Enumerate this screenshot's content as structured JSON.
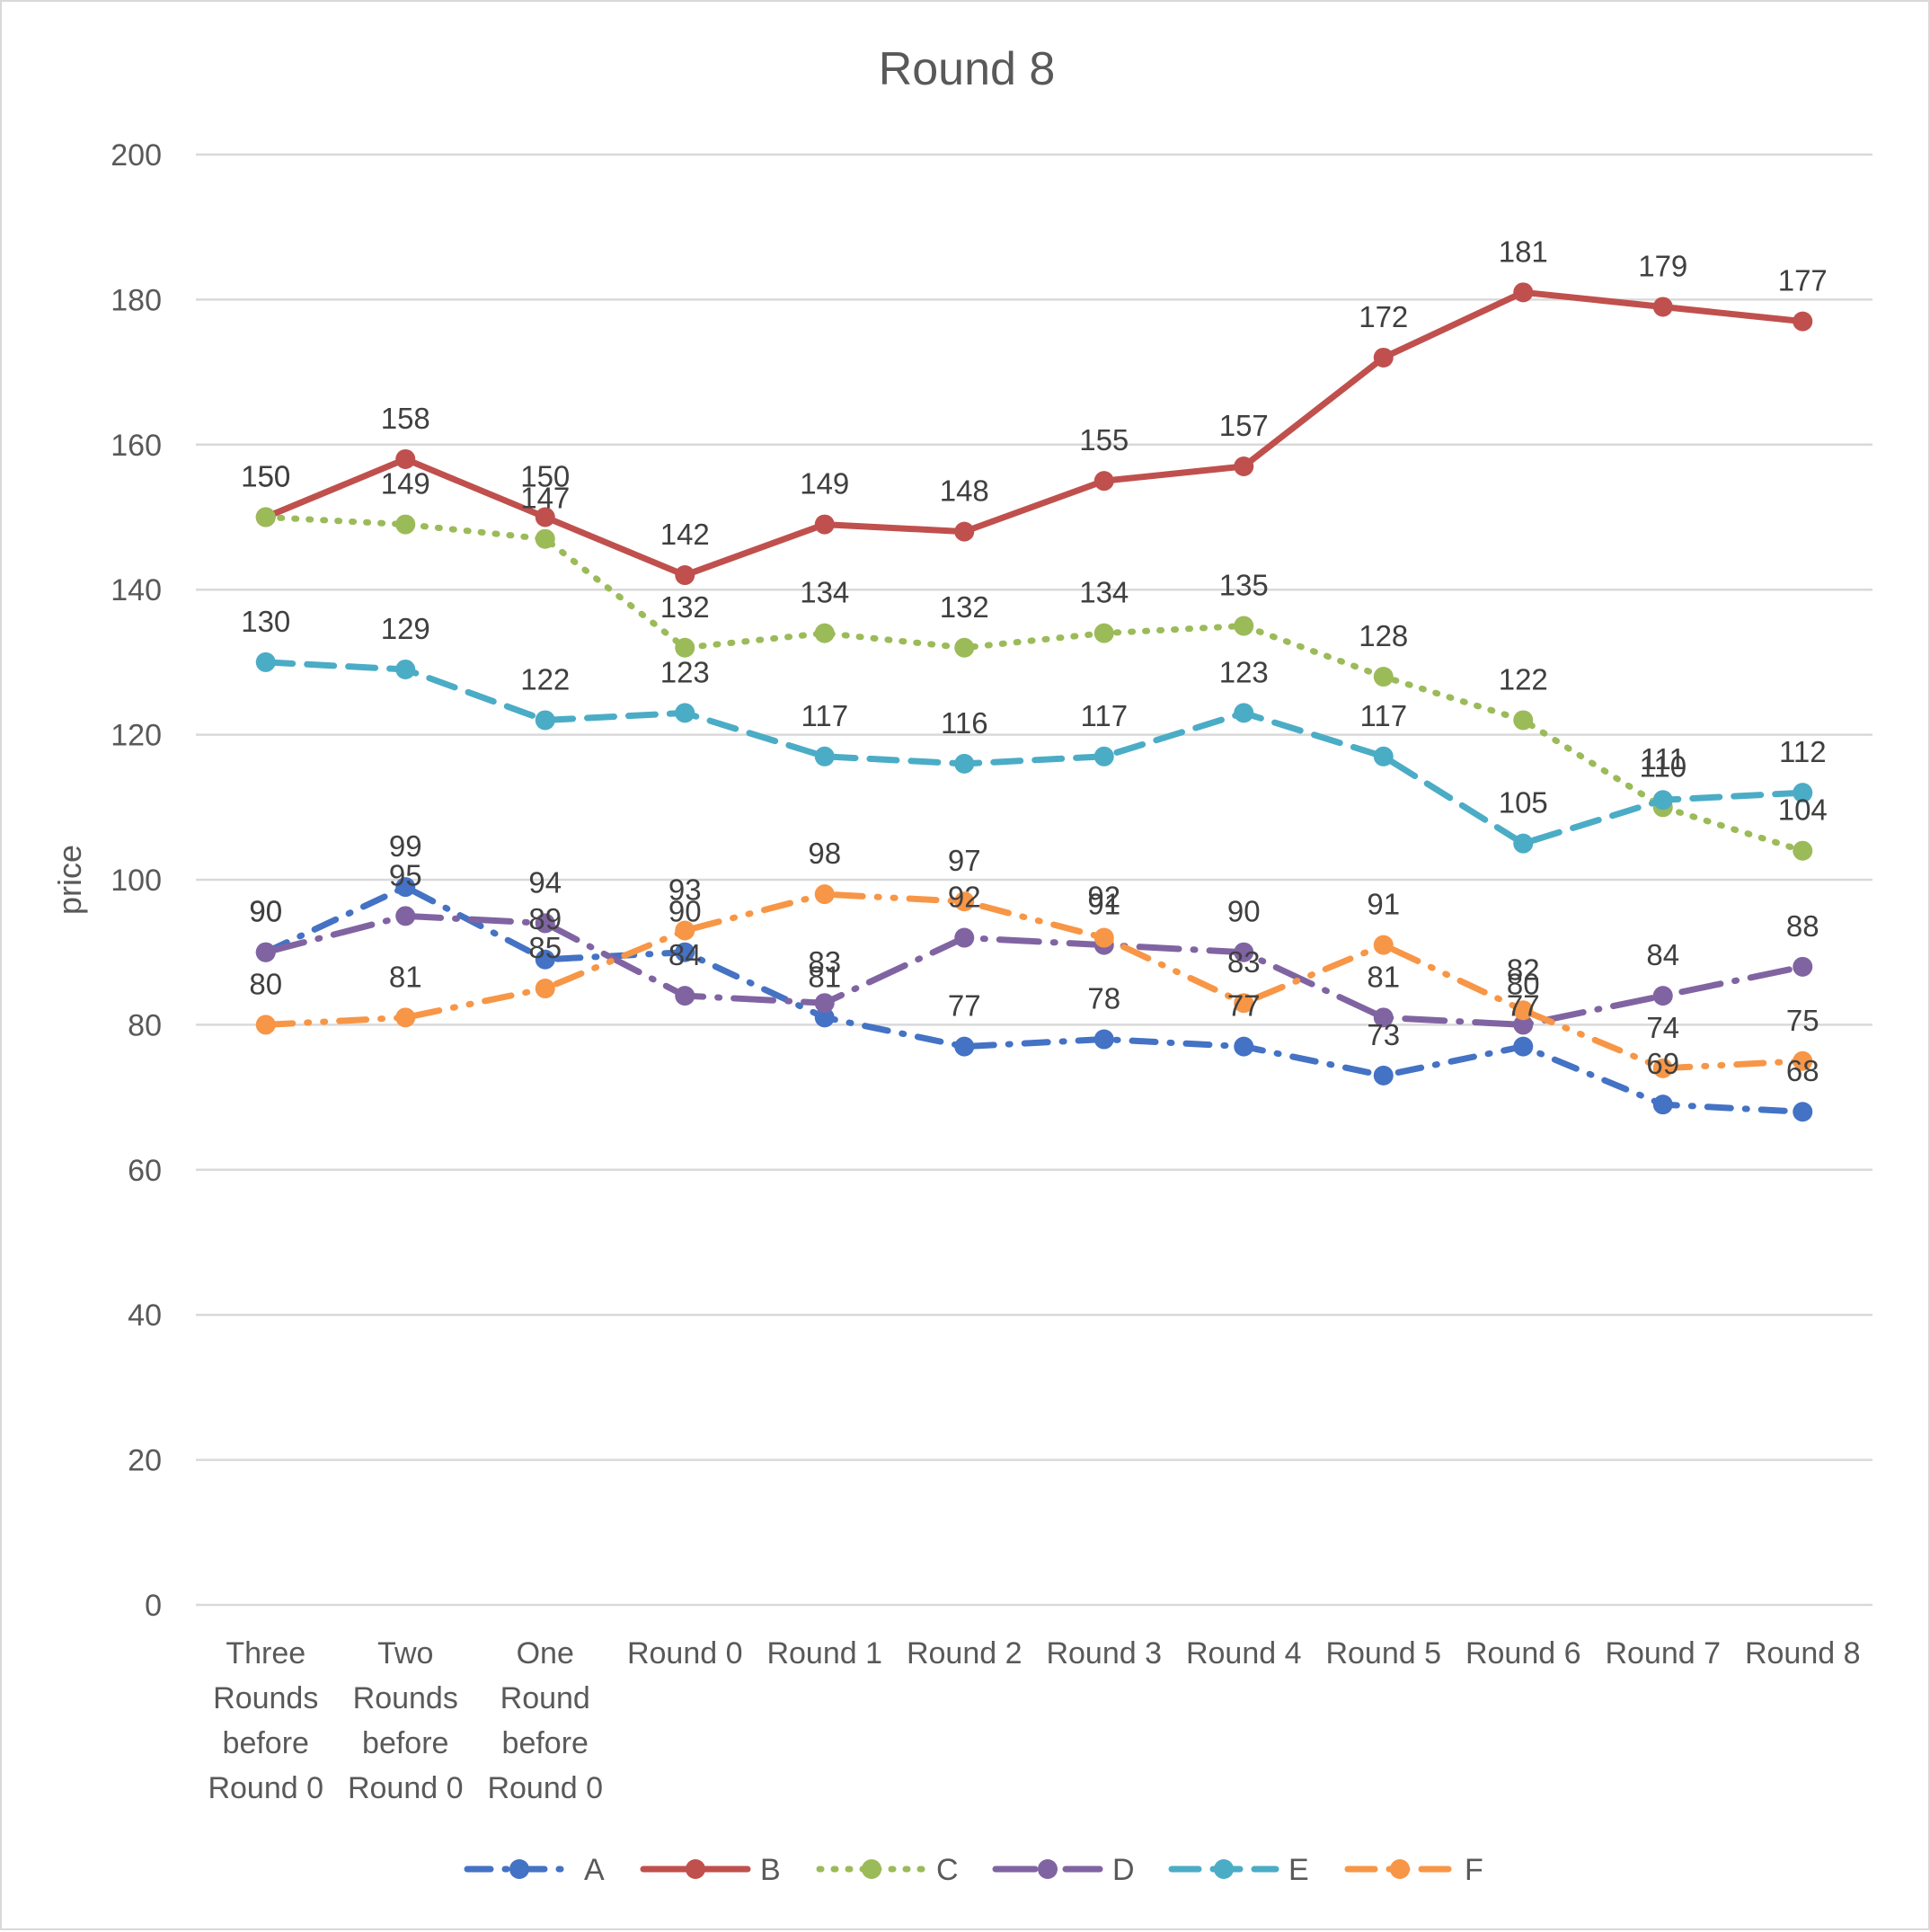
{
  "chart_data": {
    "type": "line",
    "title": "Round 8",
    "xlabel": "",
    "ylabel": "price",
    "ylim": [
      0,
      200
    ],
    "yticks": [
      0,
      20,
      40,
      60,
      80,
      100,
      120,
      140,
      160,
      180,
      200
    ],
    "grid": true,
    "legend_position": "bottom",
    "categories": [
      [
        "Three",
        "Rounds",
        "before",
        "Round 0"
      ],
      [
        "Two",
        "Rounds",
        "before",
        "Round 0"
      ],
      [
        "One",
        "Round",
        "before",
        "Round 0"
      ],
      [
        "Round 0"
      ],
      [
        "Round 1"
      ],
      [
        "Round 2"
      ],
      [
        "Round 3"
      ],
      [
        "Round 4"
      ],
      [
        "Round 5"
      ],
      [
        "Round 6"
      ],
      [
        "Round 7"
      ],
      [
        "Round 8"
      ]
    ],
    "series": [
      {
        "name": "A",
        "color": "#4472C4",
        "dash": "dash-dot",
        "values": [
          90,
          99,
          89,
          90,
          81,
          77,
          78,
          77,
          73,
          77,
          69,
          68
        ]
      },
      {
        "name": "B",
        "color": "#C0504D",
        "dash": "solid",
        "values": [
          150,
          158,
          150,
          142,
          149,
          148,
          155,
          157,
          172,
          181,
          179,
          177
        ]
      },
      {
        "name": "C",
        "color": "#9BBB59",
        "dash": "dotted",
        "values": [
          150,
          149,
          147,
          132,
          134,
          132,
          134,
          135,
          128,
          122,
          110,
          104
        ]
      },
      {
        "name": "D",
        "color": "#8064A2",
        "dash": "long-dash-dot",
        "values": [
          90,
          95,
          94,
          84,
          83,
          92,
          91,
          90,
          81,
          80,
          84,
          88
        ]
      },
      {
        "name": "E",
        "color": "#4BACC6",
        "dash": "dashed",
        "values": [
          130,
          129,
          122,
          123,
          117,
          116,
          117,
          123,
          117,
          105,
          111,
          112
        ]
      },
      {
        "name": "F",
        "color": "#F79646",
        "dash": "dash-dot-dot",
        "values": [
          80,
          81,
          85,
          93,
          98,
          97,
          92,
          83,
          91,
          82,
          74,
          75
        ]
      }
    ]
  }
}
